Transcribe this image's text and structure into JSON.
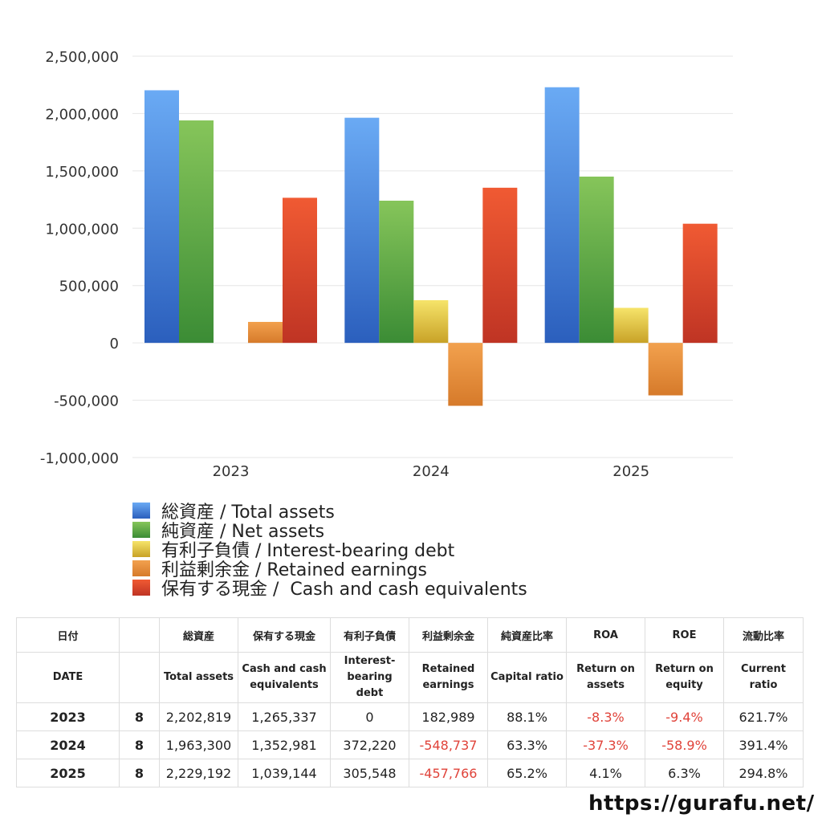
{
  "chart_data": {
    "type": "bar",
    "categories": [
      "2023",
      "2024",
      "2025"
    ],
    "ylim": [
      -1000000,
      2500000
    ],
    "yticks": [
      "2,500,000",
      "2,000,000",
      "1,500,000",
      "1,000,000",
      "500,000",
      "0",
      "-500,000",
      "-1,000,000"
    ],
    "ytick_values": [
      2500000,
      2000000,
      1500000,
      1000000,
      500000,
      0,
      -500000,
      -1000000
    ],
    "grid": true,
    "legend_position": "bottom",
    "series": [
      {
        "name": "総資産 / Total assets",
        "color_top": "#6aaaf4",
        "color_bottom": "#2b5fbd",
        "values": [
          2202819,
          1963300,
          2229192
        ]
      },
      {
        "name": "純資産 / Net assets",
        "color_top": "#86c55a",
        "color_bottom": "#3b8c35",
        "values": [
          1940000,
          1240000,
          1450000
        ]
      },
      {
        "name": "有利子負債 / Interest-bearing debt",
        "color_top": "#f6e46a",
        "color_bottom": "#c8a227",
        "values": [
          0,
          372220,
          305548
        ]
      },
      {
        "name": "利益剰余金 / Retained earnings",
        "color_top": "#f2a14e",
        "color_bottom": "#d67a2a",
        "values": [
          182989,
          -548737,
          -457766
        ]
      },
      {
        "name": "保有する現金 /  Cash and cash equivalents",
        "color_top": "#f05a33",
        "color_bottom": "#bf3424",
        "values": [
          1265337,
          1352981,
          1039144
        ]
      }
    ]
  },
  "table": {
    "header_jp": [
      "日付",
      "",
      "総資産",
      "保有する現金",
      "有利子負債",
      "利益剰余金",
      "純資産比率",
      "ROA",
      "ROE",
      "流動比率"
    ],
    "header_en": [
      "DATE",
      "",
      "Total assets",
      "Cash and cash\nequivalents",
      "Interest-\nbearing\ndebt",
      "Retained\nearnings",
      "Capital ratio",
      "Return on\nassets",
      "Return on\nequity",
      "Current\nratio"
    ],
    "rows": [
      {
        "year": "2023",
        "month": "8",
        "total_assets": "2,202,819",
        "cash": "1,265,337",
        "debt": "0",
        "retained": "182,989",
        "capital_ratio": "88.1%",
        "roa": "-8.3%",
        "roe": "-9.4%",
        "current_ratio": "621.7%"
      },
      {
        "year": "2024",
        "month": "8",
        "total_assets": "1,963,300",
        "cash": "1,352,981",
        "debt": "372,220",
        "retained": "-548,737",
        "capital_ratio": "63.3%",
        "roa": "-37.3%",
        "roe": "-58.9%",
        "current_ratio": "391.4%"
      },
      {
        "year": "2025",
        "month": "8",
        "total_assets": "2,229,192",
        "cash": "1,039,144",
        "debt": "305,548",
        "retained": "-457,766",
        "capital_ratio": "65.2%",
        "roa": "4.1%",
        "roe": "6.3%",
        "current_ratio": "294.8%"
      }
    ],
    "negative_color": "#e0433a"
  },
  "footer": {
    "site": "https://gurafu.net/"
  }
}
